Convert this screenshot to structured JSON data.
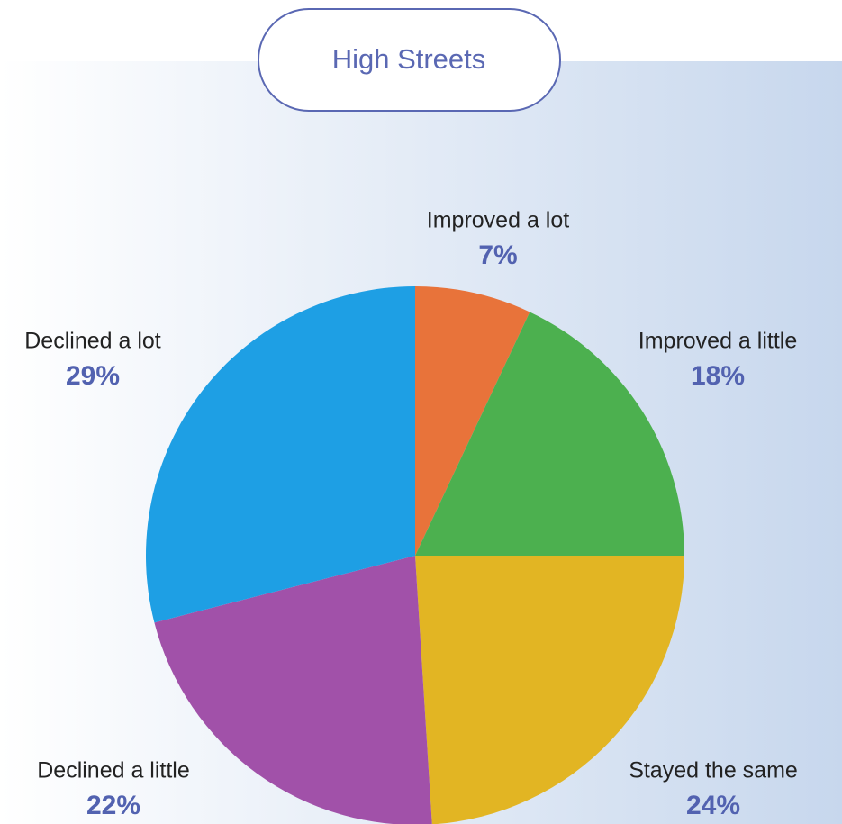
{
  "chart_data": {
    "type": "pie",
    "title": "High Streets",
    "categories": [
      "Improved a lot",
      "Improved a little",
      "Stayed the same",
      "Declined a little",
      "Declined a lot"
    ],
    "values": [
      7,
      18,
      24,
      22,
      29
    ],
    "value_labels": [
      "7%",
      "18%",
      "24%",
      "22%",
      "29%"
    ],
    "colors": [
      "#e8733a",
      "#4cb04f",
      "#e2b523",
      "#a151a9",
      "#1e9fe4"
    ]
  }
}
